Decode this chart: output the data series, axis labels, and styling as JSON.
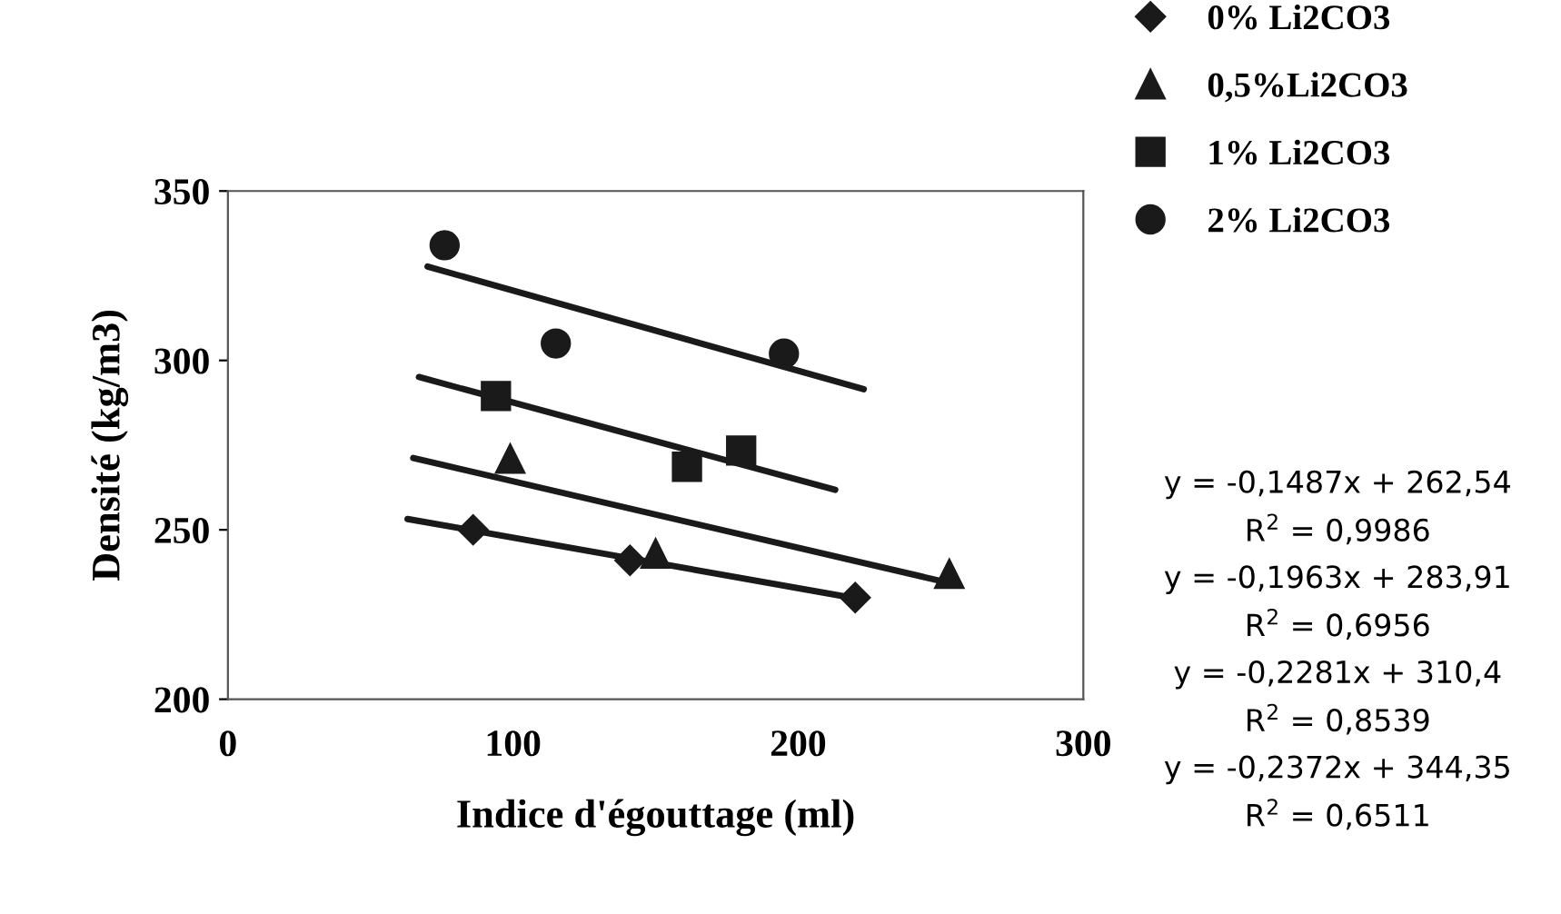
{
  "chart_data": {
    "type": "scatter",
    "xlabel": "Indice d'égouttage (ml)",
    "ylabel": "Densité (kg/m3)",
    "xlim": [
      0,
      300
    ],
    "ylim": [
      200,
      350
    ],
    "xticks": [
      0,
      100,
      200,
      300
    ],
    "yticks": [
      200,
      250,
      300,
      350
    ],
    "grid": false,
    "legend": "right",
    "series": [
      {
        "name": "0% Li2CO3",
        "color": "#1a1a1a",
        "marker": "diamond",
        "x": [
          86,
          141,
          220
        ],
        "values": [
          250,
          241,
          230
        ]
      },
      {
        "name": "0,5%Li2CO3",
        "color": "#1a1a1a",
        "marker": "triangle",
        "x": [
          99,
          150,
          253
        ],
        "values": [
          271,
          243,
          237
        ]
      },
      {
        "name": "1% Li2CO3",
        "color": "#1a1a1a",
        "marker": "square",
        "x": [
          94,
          161,
          180
        ],
        "values": [
          289.5,
          268.6,
          273.4
        ]
      },
      {
        "name": "2% Li2CO3",
        "color": "#1a1a1a",
        "marker": "circle",
        "x": [
          76,
          115,
          195
        ],
        "values": [
          334,
          305,
          302
        ]
      },
      {
        "type": "line",
        "color": "#1a1a1a",
        "marker": "none",
        "x": [
          63,
          220
        ],
        "values": [
          253.2,
          229.8
        ]
      },
      {
        "type": "line",
        "color": "#1a1a1a",
        "marker": "none",
        "x": [
          65,
          253
        ],
        "values": [
          271.2,
          234.3
        ]
      },
      {
        "type": "line",
        "color": "#1a1a1a",
        "marker": "none",
        "x": [
          67,
          213
        ],
        "values": [
          295.1,
          261.8
        ]
      },
      {
        "type": "line",
        "color": "#1a1a1a",
        "marker": "none",
        "x": [
          70,
          223
        ],
        "values": [
          327.7,
          291.5
        ]
      }
    ],
    "annotations": [
      "y = -0,1487x + 262,54",
      "R$^{2}$ = 0,9986",
      "y = -0,1963x + 283,91",
      "R$^{2}$ = 0,6956",
      "y = -0,2281x + 310,4",
      "R$^{2}$ = 0,8539",
      "y = -0,2372x + 344,35",
      "R$^{2}$ = 0,6511"
    ]
  }
}
